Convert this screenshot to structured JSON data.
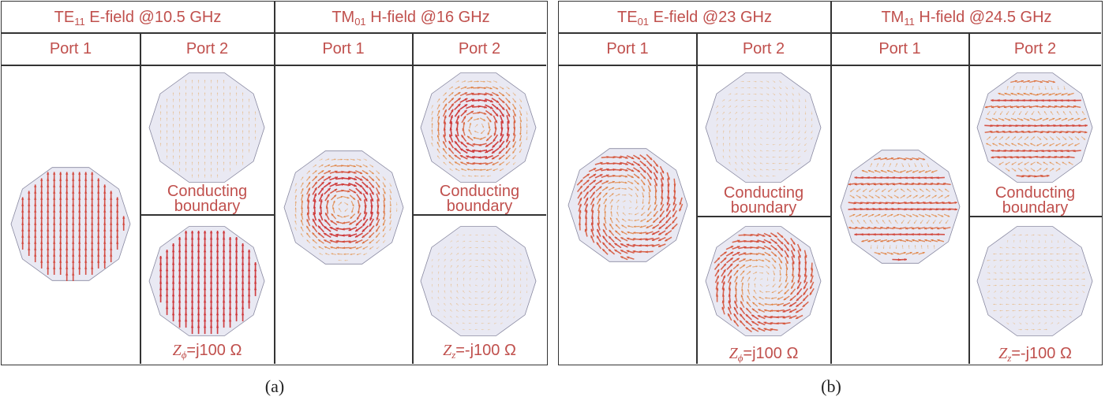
{
  "panels": [
    {
      "label": "(a)",
      "modes": [
        {
          "name": "TE",
          "subscript": "11",
          "rest": " E-field @10.5 GHz",
          "port1": "Port 1",
          "port2": "Port 2",
          "boundary": "Conducting boundary",
          "impedance": {
            "sym": "Z",
            "sub": "ϕ",
            "rest": "=j100 Ω"
          },
          "field_pattern": "uniform-vertical",
          "strengths": {
            "port1": 0.85,
            "port2_conducting": 0.12,
            "port2_impedance": 0.9
          }
        },
        {
          "name": "TM",
          "subscript": "01",
          "rest": " H-field @16 GHz",
          "port1": "Port 1",
          "port2": "Port 2",
          "boundary": "Conducting boundary",
          "impedance": {
            "sym": "Z",
            "sub": "z",
            "rest": "=-j100 Ω"
          },
          "field_pattern": "azimuthal-ring",
          "strengths": {
            "port1": 0.9,
            "port2_conducting": 0.9,
            "port2_impedance": 0.1
          }
        }
      ]
    },
    {
      "label": "(b)",
      "modes": [
        {
          "name": "TE",
          "subscript": "01",
          "rest": " E-field @23 GHz",
          "port1": "Port 1",
          "port2": "Port 2",
          "boundary": "Conducting boundary",
          "impedance": {
            "sym": "Z",
            "sub": "ϕ",
            "rest": "=j100 Ω"
          },
          "field_pattern": "azimuthal-swirl",
          "strengths": {
            "port1": 0.95,
            "port2_conducting": 0.12,
            "port2_impedance": 0.95
          }
        },
        {
          "name": "TM",
          "subscript": "11",
          "rest": " H-field @24.5 GHz",
          "port1": "Port 1",
          "port2": "Port 2",
          "boundary": "Conducting boundary",
          "impedance": {
            "sym": "Z",
            "sub": "z",
            "rest": "=-j100 Ω"
          },
          "field_pattern": "dipole-lobes",
          "strengths": {
            "port1": 0.85,
            "port2_conducting": 0.85,
            "port2_impedance": 0.15
          }
        }
      ]
    }
  ],
  "colors": {
    "text_accent": "#c0504d",
    "polygon_fill": "#e9e9f3",
    "polygon_stroke": "#8888a0",
    "arrow_strong": "#c81e3a",
    "arrow_mid": "#e07a30",
    "arrow_weak": "#e8b060"
  }
}
